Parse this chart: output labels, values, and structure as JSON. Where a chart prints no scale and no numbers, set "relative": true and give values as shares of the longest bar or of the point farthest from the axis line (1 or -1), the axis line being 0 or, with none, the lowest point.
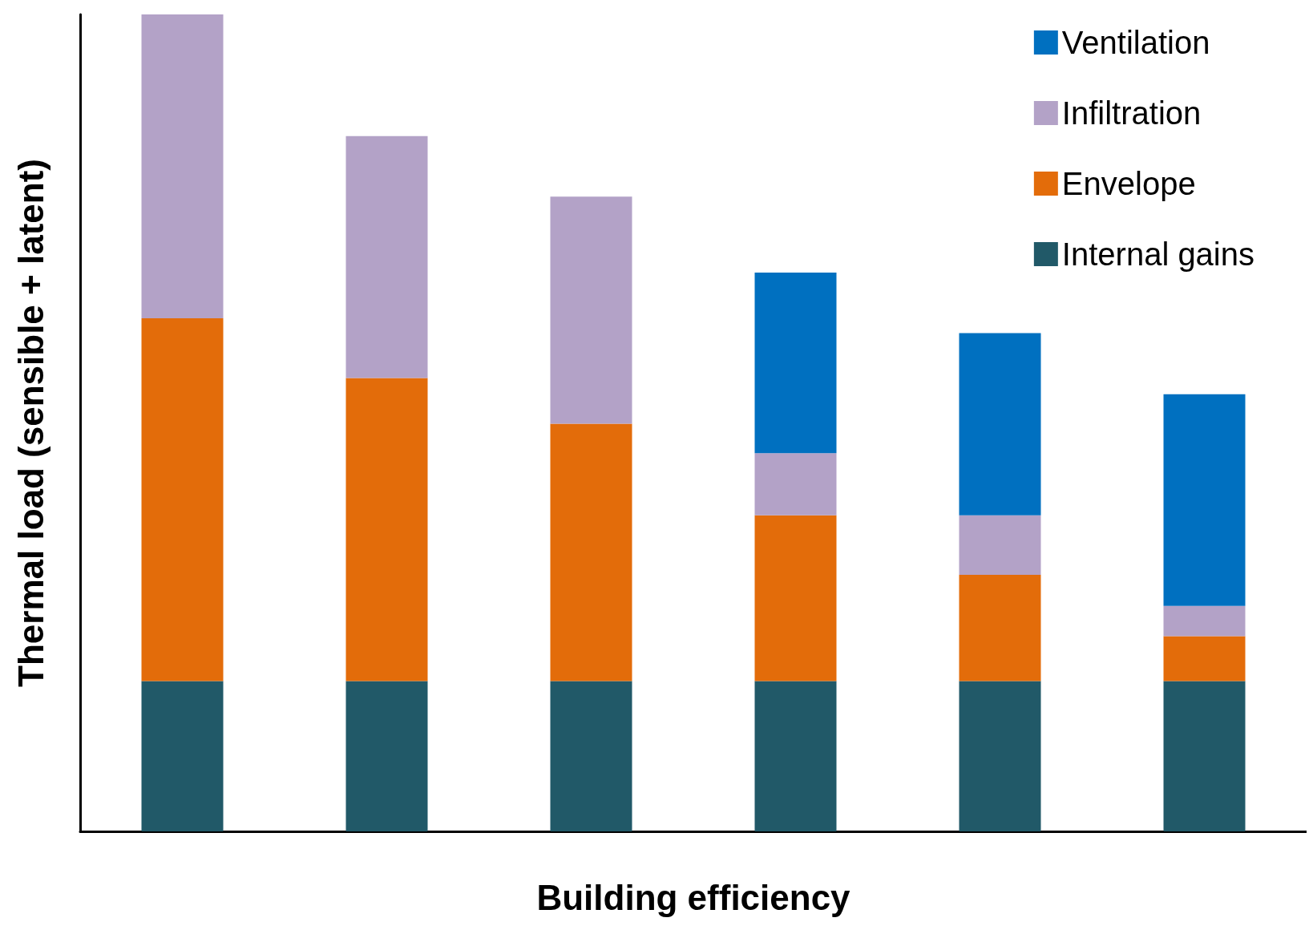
{
  "chart_data": {
    "type": "bar",
    "stacked": true,
    "relative": true,
    "xlabel": "Building efficiency",
    "ylabel": "Thermal load (sensible + latent)",
    "categories": [
      null,
      null,
      null,
      null,
      null,
      null
    ],
    "legend": "top right",
    "grid": false,
    "series": [
      {
        "name": "Internal gains",
        "color": "#215968",
        "values": [
          0.184,
          0.184,
          0.184,
          0.184,
          0.184,
          0.184
        ]
      },
      {
        "name": "Envelope",
        "color": "#e36c0a",
        "values": [
          0.444,
          0.371,
          0.315,
          0.203,
          0.13,
          0.055
        ]
      },
      {
        "name": "Infiltration",
        "color": "#b3a2c7",
        "values": [
          0.372,
          0.296,
          0.278,
          0.076,
          0.073,
          0.037
        ]
      },
      {
        "name": "Ventilation",
        "color": "#0070c0",
        "values": [
          null,
          null,
          null,
          0.221,
          0.223,
          0.259
        ]
      }
    ]
  }
}
